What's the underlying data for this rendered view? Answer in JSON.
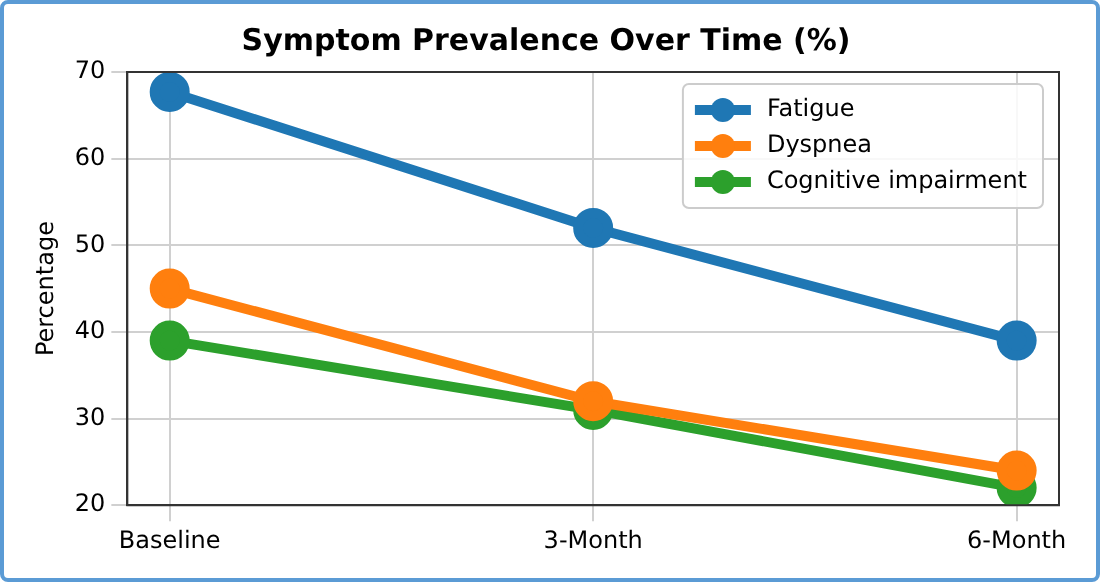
{
  "chart_data": {
    "type": "line",
    "title": "Symptom Prevalence Over Time (%)",
    "ylabel": "Percentage",
    "categories": [
      "Baseline",
      "3-Month",
      "6-Month"
    ],
    "series": [
      {
        "name": "Fatigue",
        "color": "#1f77b4",
        "values": [
          67.7,
          52,
          39
        ]
      },
      {
        "name": "Dyspnea",
        "color": "#ff7f0e",
        "values": [
          45,
          32,
          24
        ]
      },
      {
        "name": "Cognitive impairment",
        "color": "#2ca02c",
        "values": [
          39,
          31,
          22
        ]
      }
    ],
    "ylim": [
      20,
      70
    ],
    "yticks": [
      20,
      30,
      40,
      50,
      60,
      70
    ],
    "grid": true,
    "legend": "top right",
    "marker": "circle",
    "line_style": "solid"
  }
}
